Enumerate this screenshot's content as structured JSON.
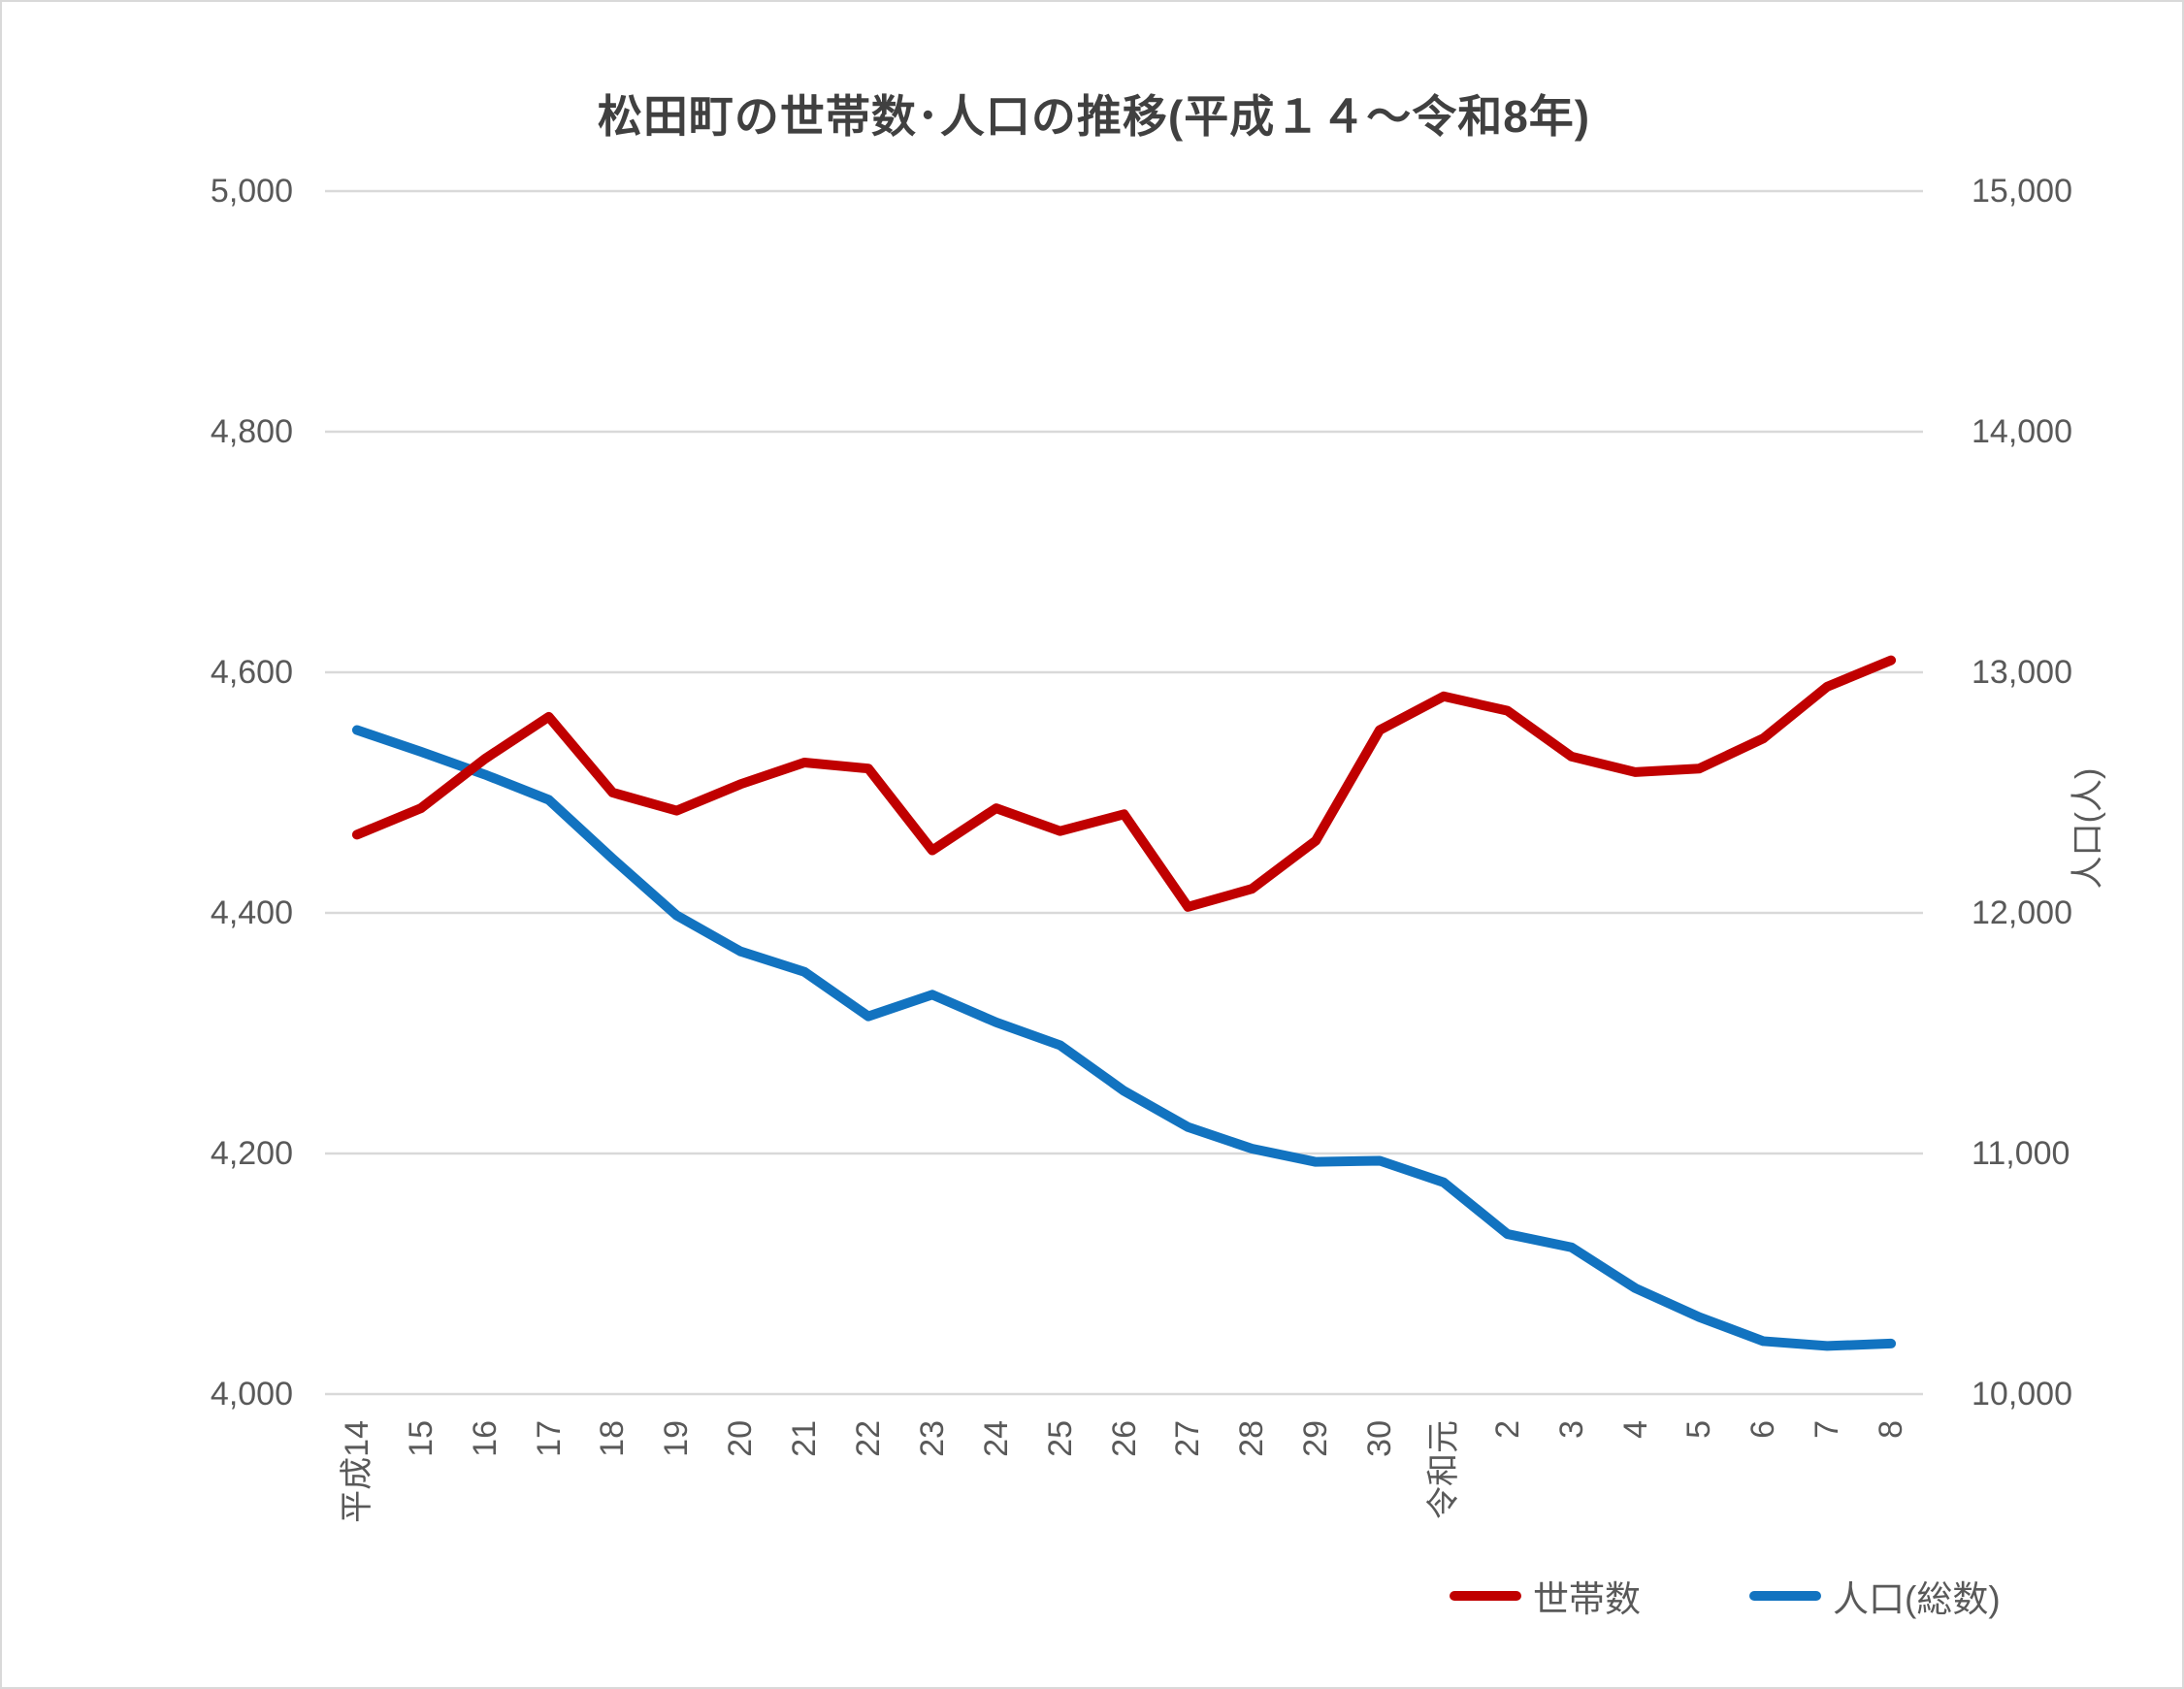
{
  "title": "松田町の世帯数･人口の推移(平成１４～令和8年)",
  "axes": {
    "left": {
      "ticks": [
        "5,000",
        "4,800",
        "4,600",
        "4,400",
        "4,200",
        "4,000"
      ]
    },
    "right": {
      "ticks": [
        "15,000",
        "14,000",
        "13,000",
        "12,000",
        "11,000",
        "10,000"
      ],
      "title": "人口(人)"
    }
  },
  "chart_data": {
    "type": "line",
    "title": "松田町の世帯数･人口の推移(平成１４～令和8年)",
    "categories": [
      "平成14",
      "15",
      "16",
      "17",
      "18",
      "19",
      "20",
      "21",
      "22",
      "23",
      "24",
      "25",
      "26",
      "27",
      "28",
      "29",
      "30",
      "令和元",
      "2",
      "3",
      "4",
      "5",
      "6",
      "7",
      "8"
    ],
    "series": [
      {
        "name": "世帯数",
        "axis": "left",
        "color": "#c00000",
        "values": [
          4465,
          4487,
          4528,
          4563,
          4500,
          4485,
          4507,
          4525,
          4520,
          4452,
          4487,
          4468,
          4482,
          4405,
          4420,
          4460,
          4552,
          4580,
          4568,
          4530,
          4517,
          4520,
          4545,
          4588,
          4610
        ]
      },
      {
        "name": "人口(総数)",
        "axis": "right",
        "color": "#1273c0",
        "values": [
          12760,
          12670,
          12575,
          12470,
          12225,
          11990,
          11840,
          11755,
          11570,
          11660,
          11545,
          11450,
          11260,
          11110,
          11020,
          10965,
          10970,
          10880,
          10665,
          10610,
          10440,
          10320,
          10220,
          10200,
          10210
        ]
      }
    ],
    "left_ylim": [
      4000,
      5000
    ],
    "right_ylim": [
      10000,
      15000
    ],
    "left_tick_step": 200,
    "right_tick_step": 1000,
    "right_ylabel": "人口(人)",
    "xlabel": "",
    "grid": true,
    "gridline_color": "#d9d9d9",
    "legend_position": "bottom-right"
  }
}
